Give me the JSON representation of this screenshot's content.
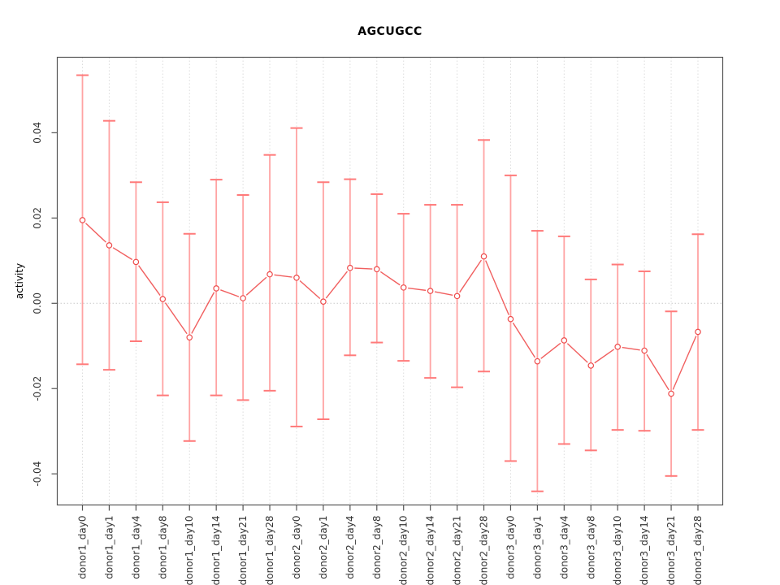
{
  "title": "AGCUGCC",
  "chart_data": {
    "type": "scatter",
    "title": "AGCUGCC",
    "xlabel": "",
    "ylabel": "activity",
    "legend": null,
    "grid": "vertical-dotted-per-category",
    "zero_line": true,
    "ylim": [
      -0.0473,
      0.0577
    ],
    "yticks": [
      0.04,
      0.02,
      0,
      -0.02,
      -0.04
    ],
    "ytick_format_decimals": 2,
    "categories": [
      "donor1_day0",
      "donor1_day1",
      "donor1_day4",
      "donor1_day8",
      "donor1_day10",
      "donor1_day14",
      "donor1_day21",
      "donor1_day28",
      "donor2_day0",
      "donor2_day1",
      "donor2_day4",
      "donor2_day8",
      "donor2_day10",
      "donor2_day14",
      "donor2_day21",
      "donor2_day28",
      "donor3_day0",
      "donor3_day1",
      "donor3_day4",
      "donor3_day8",
      "donor3_day10",
      "donor3_day14",
      "donor3_day21",
      "donor3_day28"
    ],
    "values": [
      0.0195,
      0.0136,
      0.0097,
      0.001,
      -0.008,
      0.0035,
      0.0012,
      0.0068,
      0.006,
      0.0004,
      0.0083,
      0.008,
      0.0037,
      0.0029,
      0.0017,
      0.011,
      -0.0037,
      -0.0136,
      -0.0087,
      -0.0146,
      -0.0102,
      -0.0111,
      -0.0212,
      -0.0067
    ],
    "error_low": [
      -0.0143,
      -0.0156,
      -0.0089,
      -0.0216,
      -0.0323,
      -0.0216,
      -0.0227,
      -0.0205,
      -0.0289,
      -0.0272,
      -0.0122,
      -0.0092,
      -0.0135,
      -0.0175,
      -0.0197,
      -0.016,
      -0.037,
      -0.0441,
      -0.033,
      -0.0345,
      -0.0297,
      -0.0299,
      -0.0405,
      -0.0297
    ],
    "error_high": [
      0.0535,
      0.0428,
      0.0284,
      0.0237,
      0.0163,
      0.029,
      0.0254,
      0.0348,
      0.0411,
      0.0284,
      0.0291,
      0.0256,
      0.021,
      0.0231,
      0.0231,
      0.0383,
      0.03,
      0.017,
      0.0157,
      0.0056,
      0.0091,
      0.0075,
      -0.0019,
      0.0162
    ],
    "colors": {
      "marker": "#ee4b4b",
      "series_line": "#f15f5f",
      "error_bar": "#ffa3a3",
      "error_cap": "#ff7a7a",
      "grid": "#dcdcdc",
      "zero_line": "#c9c9c9",
      "axis": "#555555",
      "tick_text": "#333333"
    }
  }
}
